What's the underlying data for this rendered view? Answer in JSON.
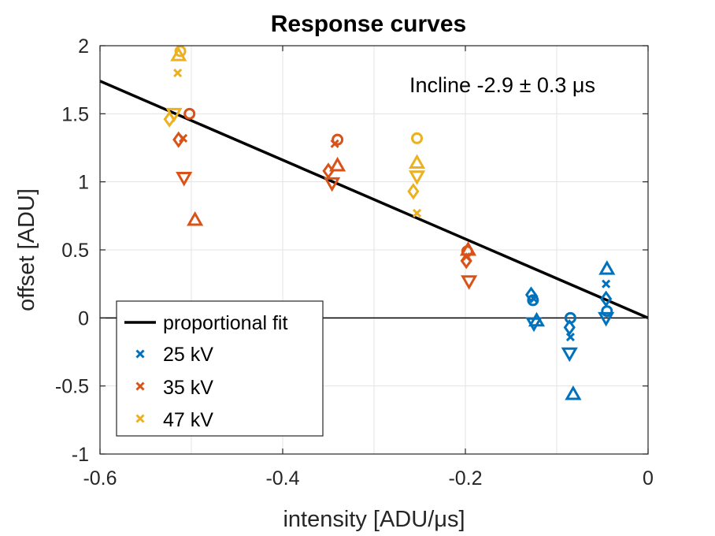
{
  "chart_data": {
    "type": "scatter",
    "title": "Response curves",
    "xlabel": "intensity [ADU/μs]",
    "ylabel": "offset [ADU]",
    "xlim": [
      -0.6,
      0
    ],
    "ylim": [
      -1,
      2
    ],
    "xticks": [
      -0.6,
      -0.4,
      -0.2,
      0
    ],
    "xtick_labels": [
      "-0.6",
      "-0.4",
      "-0.2",
      "0"
    ],
    "yticks": [
      -1,
      -0.5,
      0,
      0.5,
      1,
      1.5,
      2
    ],
    "ytick_labels": [
      "-1",
      "-0.5",
      "0",
      "0.5",
      "1",
      "1.5",
      "2"
    ],
    "grid": true,
    "annotation": "Incline -2.9 ± 0.3 μs",
    "fit": {
      "name": "proportional fit",
      "slope": -2.9,
      "color": "#000000"
    },
    "legend": {
      "position": "bottom-left",
      "entries": [
        "proportional fit",
        "25 kV",
        "35 kV",
        "47 kV"
      ]
    },
    "series": [
      {
        "name": "25 kV",
        "color": "#0072BD",
        "points": [
          {
            "x": -0.128,
            "y": 0.17,
            "m": "d"
          },
          {
            "x": -0.126,
            "y": 0.13,
            "m": "o"
          },
          {
            "x": -0.125,
            "y": 0.14,
            "m": "x"
          },
          {
            "x": -0.122,
            "y": -0.02,
            "m": "t"
          },
          {
            "x": -0.125,
            "y": -0.04,
            "m": "v"
          },
          {
            "x": -0.085,
            "y": 0.0,
            "m": "o"
          },
          {
            "x": -0.086,
            "y": -0.07,
            "m": "d"
          },
          {
            "x": -0.085,
            "y": -0.14,
            "m": "x"
          },
          {
            "x": -0.086,
            "y": -0.26,
            "m": "v"
          },
          {
            "x": -0.082,
            "y": -0.56,
            "m": "t"
          },
          {
            "x": -0.045,
            "y": 0.36,
            "m": "t"
          },
          {
            "x": -0.046,
            "y": 0.25,
            "m": "x"
          },
          {
            "x": -0.046,
            "y": 0.14,
            "m": "d"
          },
          {
            "x": -0.045,
            "y": 0.05,
            "m": "o"
          },
          {
            "x": -0.046,
            "y": 0.0,
            "m": "v"
          }
        ]
      },
      {
        "name": "35 kV",
        "color": "#D95319",
        "points": [
          {
            "x": -0.502,
            "y": 1.5,
            "m": "o"
          },
          {
            "x": -0.509,
            "y": 1.32,
            "m": "x"
          },
          {
            "x": -0.514,
            "y": 1.31,
            "m": "d"
          },
          {
            "x": -0.508,
            "y": 1.03,
            "m": "v"
          },
          {
            "x": -0.496,
            "y": 0.72,
            "m": "t"
          },
          {
            "x": -0.34,
            "y": 1.31,
            "m": "o"
          },
          {
            "x": -0.343,
            "y": 1.28,
            "m": "x"
          },
          {
            "x": -0.34,
            "y": 1.12,
            "m": "t"
          },
          {
            "x": -0.35,
            "y": 1.08,
            "m": "d"
          },
          {
            "x": -0.346,
            "y": 0.99,
            "m": "v"
          },
          {
            "x": -0.198,
            "y": 0.49,
            "m": "o"
          },
          {
            "x": -0.197,
            "y": 0.5,
            "m": "t"
          },
          {
            "x": -0.199,
            "y": 0.45,
            "m": "x"
          },
          {
            "x": -0.199,
            "y": 0.42,
            "m": "d"
          },
          {
            "x": -0.196,
            "y": 0.27,
            "m": "v"
          }
        ]
      },
      {
        "name": "47 kV",
        "color": "#EDB120",
        "points": [
          {
            "x": -0.512,
            "y": 1.96,
            "m": "o"
          },
          {
            "x": -0.514,
            "y": 1.93,
            "m": "t"
          },
          {
            "x": -0.515,
            "y": 1.8,
            "m": "x"
          },
          {
            "x": -0.519,
            "y": 1.5,
            "m": "v"
          },
          {
            "x": -0.524,
            "y": 1.46,
            "m": "d"
          },
          {
            "x": -0.253,
            "y": 1.32,
            "m": "o"
          },
          {
            "x": -0.253,
            "y": 1.14,
            "m": "t"
          },
          {
            "x": -0.253,
            "y": 1.04,
            "m": "v"
          },
          {
            "x": -0.257,
            "y": 0.93,
            "m": "d"
          },
          {
            "x": -0.253,
            "y": 0.77,
            "m": "x"
          }
        ]
      }
    ]
  }
}
